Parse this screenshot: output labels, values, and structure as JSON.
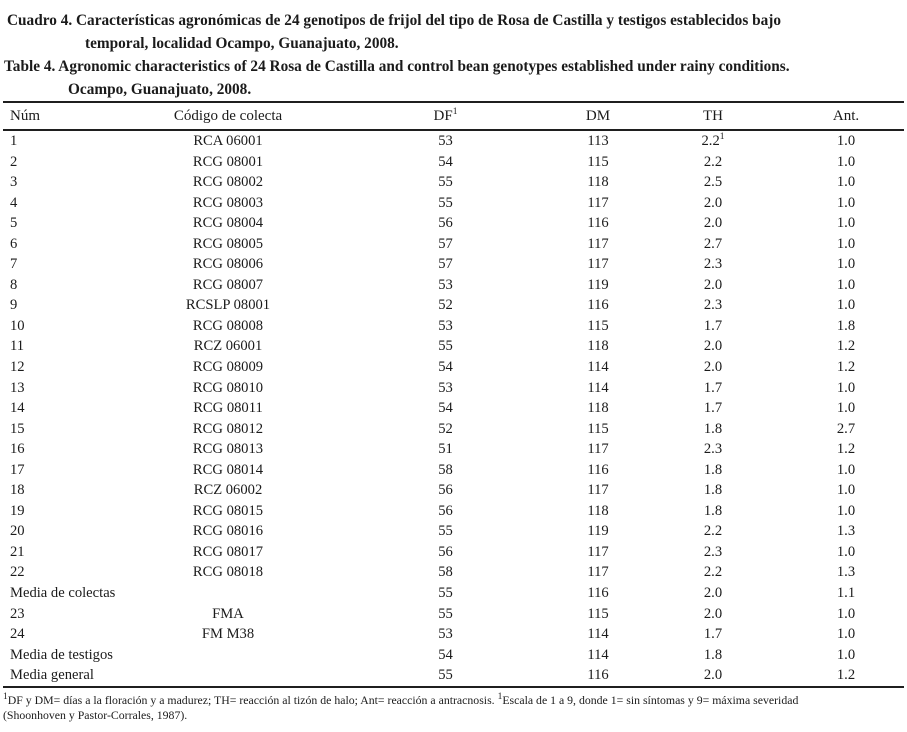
{
  "title": {
    "es_line1": "Cuadro 4. Características agronómicas de 24 genotipos de frijol del tipo de Rosa de Castilla y testigos establecidos bajo",
    "es_line2": "temporal, localidad Ocampo, Guanajuato, 2008.",
    "en_line1": "Table 4. Agronomic characteristics of 24 Rosa de Castilla and control bean genotypes established under rainy conditions.",
    "en_line2": "Ocampo, Guanajuato, 2008."
  },
  "table": {
    "columns": [
      "Núm",
      "Código de colecta",
      "DF",
      "DM",
      "TH",
      "Ant."
    ],
    "df_sup": "1",
    "rows": [
      {
        "num": "1",
        "code": "RCA 06001",
        "df": "53",
        "dm": "113",
        "th": "2.2",
        "th_sup": "1",
        "ant": "1.0"
      },
      {
        "num": "2",
        "code": "RCG 08001",
        "df": "54",
        "dm": "115",
        "th": "2.2",
        "ant": "1.0"
      },
      {
        "num": "3",
        "code": "RCG 08002",
        "df": "55",
        "dm": "118",
        "th": "2.5",
        "ant": "1.0"
      },
      {
        "num": "4",
        "code": "RCG 08003",
        "df": "55",
        "dm": "117",
        "th": "2.0",
        "ant": "1.0"
      },
      {
        "num": "5",
        "code": "RCG 08004",
        "df": "56",
        "dm": "116",
        "th": "2.0",
        "ant": "1.0"
      },
      {
        "num": "6",
        "code": "RCG 08005",
        "df": "57",
        "dm": "117",
        "th": "2.7",
        "ant": "1.0"
      },
      {
        "num": "7",
        "code": "RCG 08006",
        "df": "57",
        "dm": "117",
        "th": "2.3",
        "ant": "1.0"
      },
      {
        "num": "8",
        "code": "RCG 08007",
        "df": "53",
        "dm": "119",
        "th": "2.0",
        "ant": "1.0"
      },
      {
        "num": "9",
        "code": "RCSLP 08001",
        "df": "52",
        "dm": "116",
        "th": "2.3",
        "ant": "1.0"
      },
      {
        "num": "10",
        "code": "RCG 08008",
        "df": "53",
        "dm": "115",
        "th": "1.7",
        "ant": "1.8"
      },
      {
        "num": "11",
        "code": "RCZ 06001",
        "df": "55",
        "dm": "118",
        "th": "2.0",
        "ant": "1.2"
      },
      {
        "num": "12",
        "code": "RCG 08009",
        "df": "54",
        "dm": "114",
        "th": "2.0",
        "ant": "1.2"
      },
      {
        "num": "13",
        "code": "RCG 08010",
        "df": "53",
        "dm": "114",
        "th": "1.7",
        "ant": "1.0"
      },
      {
        "num": "14",
        "code": "RCG 08011",
        "df": "54",
        "dm": "118",
        "th": "1.7",
        "ant": "1.0"
      },
      {
        "num": "15",
        "code": "RCG 08012",
        "df": "52",
        "dm": "115",
        "th": "1.8",
        "ant": "2.7"
      },
      {
        "num": "16",
        "code": "RCG 08013",
        "df": "51",
        "dm": "117",
        "th": "2.3",
        "ant": "1.2"
      },
      {
        "num": "17",
        "code": "RCG 08014",
        "df": "58",
        "dm": "116",
        "th": "1.8",
        "ant": "1.0"
      },
      {
        "num": "18",
        "code": "RCZ 06002",
        "df": "56",
        "dm": "117",
        "th": "1.8",
        "ant": "1.0"
      },
      {
        "num": "19",
        "code": "RCG 08015",
        "df": "56",
        "dm": "118",
        "th": "1.8",
        "ant": "1.0"
      },
      {
        "num": "20",
        "code": "RCG 08016",
        "df": "55",
        "dm": "119",
        "th": "2.2",
        "ant": "1.3"
      },
      {
        "num": "21",
        "code": "RCG 08017",
        "df": "56",
        "dm": "117",
        "th": "2.3",
        "ant": "1.0"
      },
      {
        "num": "22",
        "code": "RCG 08018",
        "df": "58",
        "dm": "117",
        "th": "2.2",
        "ant": "1.3"
      },
      {
        "num": "Media de colectas",
        "code": null,
        "df": "55",
        "dm": "116",
        "th": "2.0",
        "ant": "1.1"
      },
      {
        "num": "23",
        "code": "FMA",
        "df": "55",
        "dm": "115",
        "th": "2.0",
        "ant": "1.0"
      },
      {
        "num": "24",
        "code": "FM M38",
        "df": "53",
        "dm": "114",
        "th": "1.7",
        "ant": "1.0"
      },
      {
        "num": "Media de testigos",
        "code": null,
        "df": "54",
        "dm": "114",
        "th": "1.8",
        "ant": "1.0"
      },
      {
        "num": "Media general",
        "code": null,
        "df": "55",
        "dm": "116",
        "th": "2.0",
        "ant": "1.2"
      }
    ]
  },
  "footnote": {
    "sup1": "1",
    "part1": "DF y DM= días a la floración y a madurez; TH= reacción al tizón de halo; Ant= reacción a antracnosis. ",
    "sup2": "1",
    "part2": "Escala de 1 a 9, donde 1= sin síntomas y 9= máxima severidad",
    "line2": "(Shoonhoven y Pastor-Corrales, 1987)."
  }
}
